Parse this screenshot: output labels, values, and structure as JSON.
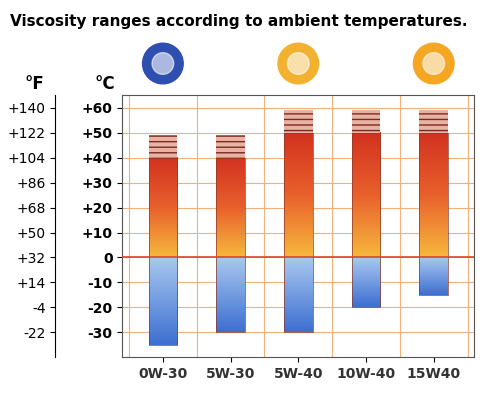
{
  "chart_data": {
    "type": "bar",
    "title": "Viscosity ranges according to ambient temperatures.",
    "categories": [
      "0W-30",
      "5W-30",
      "5W-40",
      "10W-40",
      "15W40"
    ],
    "low": [
      -35,
      -30,
      -30,
      -20,
      -15
    ],
    "high": [
      40,
      40,
      50,
      50,
      50
    ],
    "high_max": [
      49,
      49,
      59,
      59,
      59
    ],
    "ylabel": "°C",
    "y2label": "°F",
    "ylim": [
      -40,
      65
    ],
    "yticks": [
      {
        "value": 60,
        "label": "+60"
      },
      {
        "value": 50,
        "label": "+50"
      },
      {
        "value": 40,
        "label": "+40"
      },
      {
        "value": 30,
        "label": "+30"
      },
      {
        "value": 20,
        "label": "+20"
      },
      {
        "value": 10,
        "label": "+10"
      },
      0,
      -10,
      -20,
      -30
    ],
    "y2lim": [
      -40,
      149
    ],
    "y2ticks": [
      {
        "value": 140,
        "label": "+140"
      },
      {
        "value": 122,
        "label": "+122"
      },
      {
        "value": 104,
        "label": "+104"
      },
      {
        "value": 86,
        "label": "+86"
      },
      {
        "value": 68,
        "label": "+68"
      },
      {
        "value": 50,
        "label": "+50"
      },
      {
        "value": 32,
        "label": "+32"
      },
      {
        "value": 14,
        "label": "+14"
      },
      -4,
      -22
    ],
    "grid": true
  }
}
